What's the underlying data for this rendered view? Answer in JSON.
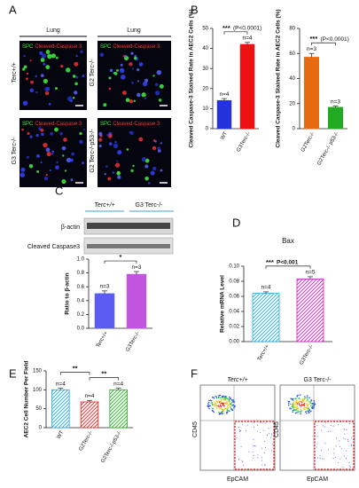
{
  "figure": {
    "letters": [
      "A",
      "B",
      "C",
      "D",
      "E",
      "F"
    ],
    "panel_a": {
      "tissue": [
        "Lung",
        "Lung"
      ],
      "groups": [
        "Terc+/+",
        "G2 Terc-/-",
        "G3 Terc-/-",
        "G2 Terc-/-p53-/-"
      ],
      "stain_green": "SPC",
      "stain_red": "Cleaved-Caspase 3"
    },
    "panel_c_blot": {
      "lanes": [
        "Terc+/+",
        "G3 Terc-/-"
      ],
      "bands": [
        "β-actin",
        "Cleaved Caspase3"
      ]
    },
    "panel_f": {
      "groups": [
        "Terc+/+",
        "G3 Terc-/-"
      ],
      "y_axis": "CD45",
      "x_axis": "EpCAM"
    }
  },
  "chart_data": [
    {
      "type": "bar",
      "ylabel": "Cleaved Caspase-3 Stained Rate in AEC2 Cells (%)",
      "categories": [
        "WT",
        "G3Terc-/-"
      ],
      "values": [
        14,
        42
      ],
      "errors": [
        1,
        1
      ],
      "colors": [
        "#2233dd",
        "#ee1111"
      ],
      "n_labels": [
        "n=4",
        "n=4"
      ],
      "significance": [
        "***"
      ],
      "p_values": [
        "(P<0.0001)"
      ],
      "ylim": [
        0,
        50
      ],
      "yticks": [
        0,
        10,
        20,
        30,
        40,
        50
      ]
    },
    {
      "type": "bar",
      "ylabel": "Cleaved Caspase-3 Stained Rate in AEC2 Cells (%)",
      "categories": [
        "G2Terc-/-",
        "G2Terc-/- p53-/-"
      ],
      "values": [
        57,
        17
      ],
      "errors": [
        3,
        1
      ],
      "colors": [
        "#e86a10",
        "#22aa22"
      ],
      "n_labels": [
        "n=3",
        "n=3"
      ],
      "significance": [
        "***"
      ],
      "p_values": [
        "(P<0.0001)"
      ],
      "ylim": [
        0,
        80
      ],
      "yticks": [
        0,
        20,
        40,
        60,
        80
      ]
    },
    {
      "type": "bar",
      "ylabel": "Ratio to β-actin",
      "categories": [
        "Terc+/+",
        "G3Terc-/-"
      ],
      "values": [
        0.5,
        0.78
      ],
      "errors": [
        0.04,
        0.04
      ],
      "colors": [
        "#5a5cf2",
        "#c055e0"
      ],
      "n_labels": [
        "n=3",
        "n=3"
      ],
      "significance": [
        "*"
      ],
      "ylim": [
        0,
        1
      ],
      "yticks": [
        {
          "value": 0,
          "label": "0.0"
        },
        0.2,
        0.4,
        0.6,
        0.8,
        {
          "value": 1,
          "label": "1.0"
        }
      ]
    },
    {
      "type": "bar",
      "title": "Bax",
      "ylabel": "Relative mRNA Level",
      "categories": [
        "Terc+/+",
        "G3Terc-/-"
      ],
      "values": [
        0.064,
        0.083
      ],
      "errors": [
        0.002,
        0.003
      ],
      "colors": [
        "#22aadd",
        "#cc22bb"
      ],
      "fill_style": "hatched",
      "n_labels": [
        "n=4",
        "n=5"
      ],
      "significance": [
        "***"
      ],
      "p_values": [
        "P<0.001"
      ],
      "ylim": [
        0,
        0.1
      ],
      "yticks": [
        {
          "value": 0,
          "label": "0.00"
        },
        0.02,
        0.04,
        0.06,
        0.08,
        {
          "value": 0.1,
          "label": "0.10"
        }
      ]
    },
    {
      "type": "bar",
      "ylabel": "AEC2 Cell Number Per Field",
      "categories": [
        "WT",
        "G2Terc-/-",
        "G2Terc-/-p53-/-"
      ],
      "values": [
        100,
        68,
        100
      ],
      "errors": [
        4,
        4,
        4
      ],
      "colors": [
        "#22aadd",
        "#ee2222",
        "#22aa22"
      ],
      "fill_style": "hatched",
      "n_labels": [
        "n=4",
        "n=4",
        "n=4"
      ],
      "significance": [
        "**",
        "**"
      ],
      "ylim": [
        0,
        150
      ],
      "yticks": [
        0,
        50,
        100,
        150
      ]
    }
  ]
}
